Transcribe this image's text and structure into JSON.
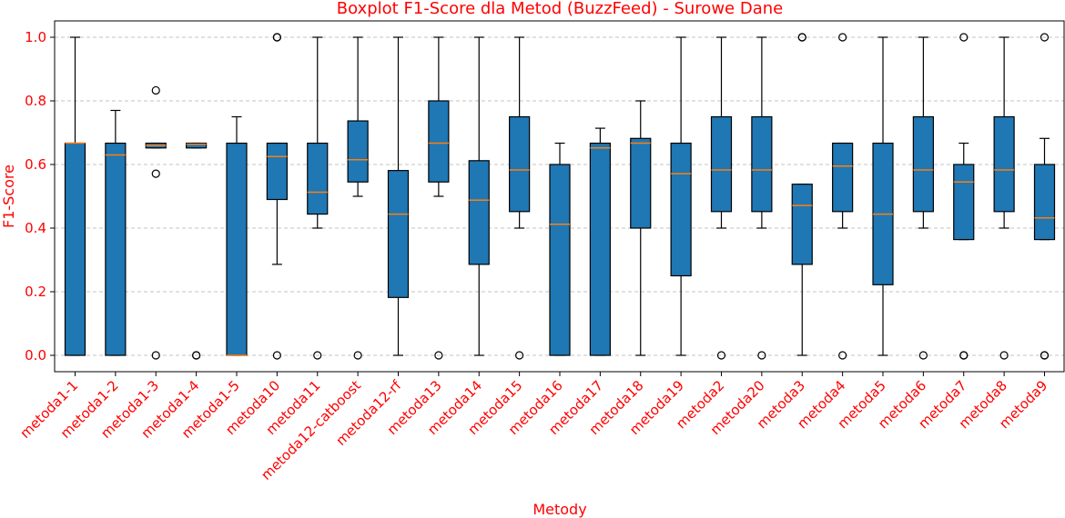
{
  "chart_data": {
    "type": "boxplot",
    "title": "Boxplot F1-Score dla Metod (BuzzFeed) - Surowe Dane",
    "xlabel": "Metody",
    "ylabel": "F1-Score",
    "ylim": [
      -0.05,
      1.05
    ],
    "yticks": [
      "0.0",
      "0.2",
      "0.4",
      "0.6",
      "0.8",
      "1.0"
    ],
    "grid": "y-dashed",
    "colors": {
      "box": "#1f77b4",
      "median": "#ff7f0e",
      "text": "#ff0000"
    },
    "categories": [
      "metoda1-1",
      "metoda1-2",
      "metoda1-3",
      "metoda1-4",
      "metoda1-5",
      "metoda10",
      "metoda11",
      "metoda12-catboost",
      "metoda12-rf",
      "metoda13",
      "metoda14",
      "metoda15",
      "metoda16",
      "metoda17",
      "metoda18",
      "metoda19",
      "metoda2",
      "metoda20",
      "metoda3",
      "metoda4",
      "metoda5",
      "metoda6",
      "metoda7",
      "metoda8",
      "metoda9"
    ],
    "boxes": [
      {
        "whislo": 0.0,
        "q1": 0.0,
        "med": 0.667,
        "q3": 0.667,
        "whishi": 1.0,
        "fliers": []
      },
      {
        "whislo": 0.0,
        "q1": 0.0,
        "med": 0.63,
        "q3": 0.667,
        "whishi": 0.77,
        "fliers": []
      },
      {
        "whislo": 0.652,
        "q1": 0.652,
        "med": 0.66,
        "q3": 0.667,
        "whishi": 0.667,
        "fliers": [
          0.833,
          0.571,
          0.0
        ]
      },
      {
        "whislo": 0.652,
        "q1": 0.652,
        "med": 0.664,
        "q3": 0.667,
        "whishi": 0.667,
        "fliers": [
          0.0,
          0.0
        ]
      },
      {
        "whislo": 0.0,
        "q1": 0.0,
        "med": 0.0,
        "q3": 0.667,
        "whishi": 0.75,
        "fliers": []
      },
      {
        "whislo": 0.286,
        "q1": 0.49,
        "med": 0.625,
        "q3": 0.667,
        "whishi": 0.667,
        "fliers": [
          1.0,
          1.0,
          0.0
        ]
      },
      {
        "whislo": 0.4,
        "q1": 0.444,
        "med": 0.513,
        "q3": 0.667,
        "whishi": 1.0,
        "fliers": [
          0.0
        ]
      },
      {
        "whislo": 0.5,
        "q1": 0.545,
        "med": 0.615,
        "q3": 0.737,
        "whishi": 1.0,
        "fliers": [
          0.0
        ]
      },
      {
        "whislo": 0.0,
        "q1": 0.182,
        "med": 0.444,
        "q3": 0.581,
        "whishi": 1.0,
        "fliers": []
      },
      {
        "whislo": 0.5,
        "q1": 0.545,
        "med": 0.667,
        "q3": 0.8,
        "whishi": 1.0,
        "fliers": [
          0.0
        ]
      },
      {
        "whislo": 0.0,
        "q1": 0.286,
        "med": 0.488,
        "q3": 0.612,
        "whishi": 1.0,
        "fliers": []
      },
      {
        "whislo": 0.4,
        "q1": 0.452,
        "med": 0.583,
        "q3": 0.75,
        "whishi": 1.0,
        "fliers": [
          0.0
        ]
      },
      {
        "whislo": 0.0,
        "q1": 0.0,
        "med": 0.412,
        "q3": 0.6,
        "whishi": 0.667,
        "fliers": []
      },
      {
        "whislo": 0.0,
        "q1": 0.0,
        "med": 0.652,
        "q3": 0.667,
        "whishi": 0.714,
        "fliers": []
      },
      {
        "whislo": 0.0,
        "q1": 0.4,
        "med": 0.667,
        "q3": 0.682,
        "whishi": 0.8,
        "fliers": []
      },
      {
        "whislo": 0.0,
        "q1": 0.25,
        "med": 0.571,
        "q3": 0.667,
        "whishi": 1.0,
        "fliers": []
      },
      {
        "whislo": 0.4,
        "q1": 0.452,
        "med": 0.583,
        "q3": 0.75,
        "whishi": 1.0,
        "fliers": [
          0.0
        ]
      },
      {
        "whislo": 0.4,
        "q1": 0.452,
        "med": 0.583,
        "q3": 0.75,
        "whishi": 1.0,
        "fliers": [
          0.0
        ]
      },
      {
        "whislo": 0.0,
        "q1": 0.286,
        "med": 0.471,
        "q3": 0.538,
        "whishi": 0.538,
        "fliers": [
          1.0,
          1.0
        ]
      },
      {
        "whislo": 0.4,
        "q1": 0.452,
        "med": 0.595,
        "q3": 0.667,
        "whishi": 0.667,
        "fliers": [
          1.0,
          0.0
        ]
      },
      {
        "whislo": 0.0,
        "q1": 0.222,
        "med": 0.444,
        "q3": 0.667,
        "whishi": 1.0,
        "fliers": []
      },
      {
        "whislo": 0.4,
        "q1": 0.452,
        "med": 0.583,
        "q3": 0.75,
        "whishi": 1.0,
        "fliers": [
          0.0
        ]
      },
      {
        "whislo": 0.364,
        "q1": 0.364,
        "med": 0.545,
        "q3": 0.6,
        "whishi": 0.667,
        "fliers": [
          1.0,
          0.0,
          0.0
        ]
      },
      {
        "whislo": 0.4,
        "q1": 0.452,
        "med": 0.583,
        "q3": 0.75,
        "whishi": 1.0,
        "fliers": [
          0.0
        ]
      },
      {
        "whislo": 0.364,
        "q1": 0.364,
        "med": 0.432,
        "q3": 0.6,
        "whishi": 0.682,
        "fliers": [
          1.0,
          0.0,
          0.0
        ]
      }
    ]
  }
}
